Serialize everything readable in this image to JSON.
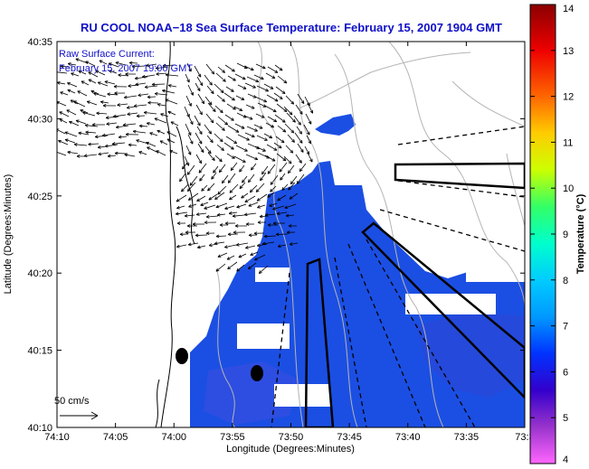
{
  "title": "RU COOL  NOAA−18  Sea Surface Temperature:  February 15, 2007 1904 GMT",
  "legend": {
    "line1": "Raw Surface Current:",
    "line2": "February 15, 2007 19:00 GMT",
    "scale_label": "50 cm/s"
  },
  "axes": {
    "xlabel": "Longitude (Degrees:Minutes)",
    "ylabel": "Latitude (Degrees:Minutes)",
    "xticks": [
      "74:10",
      "74:05",
      "74:00",
      "73:55",
      "73:50",
      "73:45",
      "73:40",
      "73:35",
      "73:3"
    ],
    "yticks": [
      "40:35",
      "40:30",
      "40:25",
      "40:20",
      "40:15",
      "40:10"
    ]
  },
  "colorbar": {
    "label": "Temperature (°C)",
    "ticks": [
      "14",
      "13",
      "12",
      "11",
      "10",
      "9",
      "8",
      "7",
      "6",
      "5",
      "4"
    ],
    "range": [
      4,
      14
    ],
    "colors": [
      "#ff66ff",
      "#9933cc",
      "#3300cc",
      "#0033ff",
      "#0099ff",
      "#00ccff",
      "#00ffcc",
      "#33ff66",
      "#ccff00",
      "#ffcc00",
      "#ff6600",
      "#ee0000",
      "#8b0000"
    ]
  },
  "map": {
    "land_color": "#ffffff",
    "sst_color": "#1b4fe3",
    "sst_value_c": 5.8,
    "arrow_color": "#000000"
  }
}
